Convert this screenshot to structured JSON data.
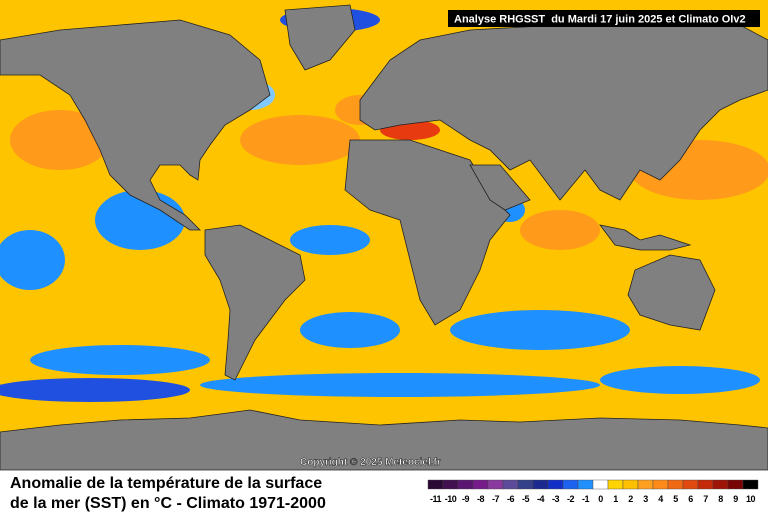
{
  "header": "Analyse RHGSST  du Mardi 17 juin 2025 et Climato OIv2",
  "copyright": "Copyright © 2025 Meteociel.fr",
  "title": [
    "Anomalie de la température de la surface",
    "de la mer (SST) en °C - Climato 1971-2000"
  ],
  "legend": {
    "labels": [
      -11,
      -10,
      -9,
      -8,
      -7,
      -6,
      -5,
      -4,
      -3,
      -2,
      -1,
      0,
      1,
      2,
      3,
      4,
      5,
      6,
      7,
      8,
      9,
      10
    ],
    "colors": [
      "#2a0a35",
      "#40104f",
      "#5a1670",
      "#761c8a",
      "#8a3a9e",
      "#5c4a9a",
      "#34408a",
      "#1c2a90",
      "#1230c8",
      "#1e62f0",
      "#2090ff",
      "#ffffff",
      "#ffd400",
      "#ffc000",
      "#ffa020",
      "#ff8a1a",
      "#f06a14",
      "#e04a10",
      "#c42a0a",
      "#a01408",
      "#780404",
      "#000000"
    ]
  }
}
